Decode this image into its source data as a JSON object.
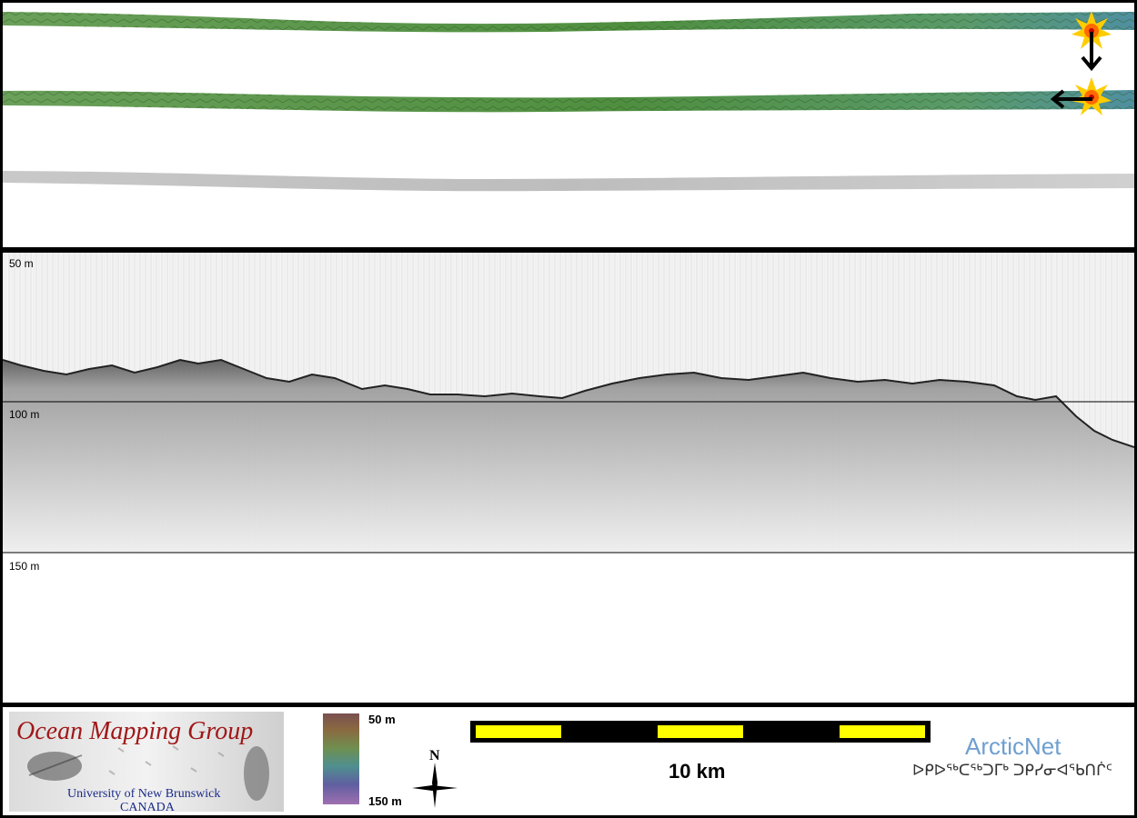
{
  "profile": {
    "depth_labels": [
      "50 m",
      "100 m",
      "150 m"
    ]
  },
  "footer": {
    "logo": {
      "title": "Ocean Mapping Group",
      "subtitle_line1": "University of New Brunswick",
      "subtitle_line2": "CANADA"
    },
    "colorbar": {
      "top_label": "50 m",
      "bottom_label": "150 m"
    },
    "compass": {
      "label": "N"
    },
    "scalebar": {
      "label": "10 km"
    },
    "arcticnet": {
      "name": "ArcticNet",
      "syllabics": "ᐅᑭᐅᖅᑕᖅᑐᒥᒃ ᑐᑭᓯᓂᐊᖃᑎᒌᑦ"
    }
  },
  "colors": {
    "swath_green": "#5f9a4a",
    "swath_teal": "#4f8f9a",
    "backscatter_gray": "#cfcfcf",
    "scalebar_yellow": "#ffff00",
    "logo_red": "#a01818",
    "logo_blue": "#1a2a8a",
    "arcticnet_blue": "#6f9fd0"
  },
  "icons": [
    "sun-marker-icon",
    "arrow-down-icon",
    "arrow-left-icon",
    "north-arrow-icon"
  ]
}
